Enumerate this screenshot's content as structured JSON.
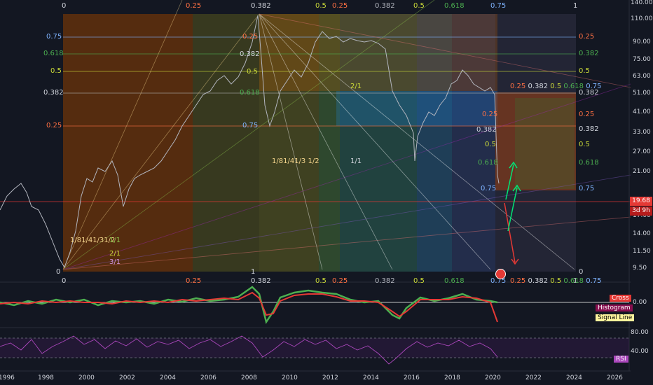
{
  "price_axis": {
    "ticks": [
      "140.00",
      "110.00",
      "90.00",
      "75.00",
      "63.00",
      "51.00",
      "41.00",
      "33.00",
      "27.00",
      "21.00",
      "17.00",
      "14.00",
      "11.50",
      "9.50"
    ],
    "last_price": "19.68",
    "countdown": "3d 9h",
    "last_price_color": "#e53935",
    "countdown_color": "#b71c1c"
  },
  "time_axis": {
    "labels": [
      "1996",
      "1998",
      "2000",
      "2002",
      "2004",
      "2006",
      "2008",
      "2010",
      "2012",
      "2014",
      "2016",
      "2018",
      "2020",
      "2022",
      "2024",
      "2026"
    ]
  },
  "fib_levels": {
    "left": [
      "0.75",
      "0.618",
      "0.5",
      "0.382",
      "0.25"
    ],
    "right": [
      "0.75",
      "0.382",
      "0.5",
      "0.382",
      "0.25"
    ],
    "right_late": [
      "0.25",
      "0.382",
      "0.5",
      "0.618",
      "0.75"
    ]
  },
  "time_fib": {
    "top": [
      "0",
      "0.25",
      "0.382",
      "0.5",
      "0.25",
      "0.382",
      "0.5",
      "0.618",
      "0.75",
      "1"
    ],
    "bottom": [
      "0",
      "0.25",
      "0.382",
      "0.5",
      "0.25",
      "0.382",
      "0.5",
      "0.618",
      "0.75",
      "1"
    ],
    "late_bottom": [
      "0.25",
      "0.382",
      "0.5",
      "0.618",
      "0.75"
    ],
    "corner_top_left": "0",
    "corner_top_right": "1",
    "corner_bottom_left": "0",
    "corner_bottom_right": "1",
    "mid_bottom": "1"
  },
  "gann_fans": {
    "first": [
      "1/8",
      "1/4",
      "1/3",
      "1/2",
      "1/1",
      "2/1",
      "3/1"
    ],
    "second": [
      "1/8",
      "1/4",
      "1/3",
      "1/2",
      "1/1",
      "2/1"
    ],
    "late": [
      "0.25",
      "0.382"
    ]
  },
  "macd": {
    "legend": [
      "Cross",
      "Histogram",
      "Signal Line"
    ],
    "value": "0.00",
    "legend_colors": [
      "#e53935",
      "#880e4f",
      "#fff59d"
    ]
  },
  "rsi": {
    "label": "RSI",
    "ticks": [
      "80.00",
      "40.00"
    ],
    "color": "#ab47bc"
  },
  "colors": {
    "background": "#131722",
    "bull": "#4caf50",
    "bear": "#e53935",
    "price_line": "#b2b5be"
  }
}
